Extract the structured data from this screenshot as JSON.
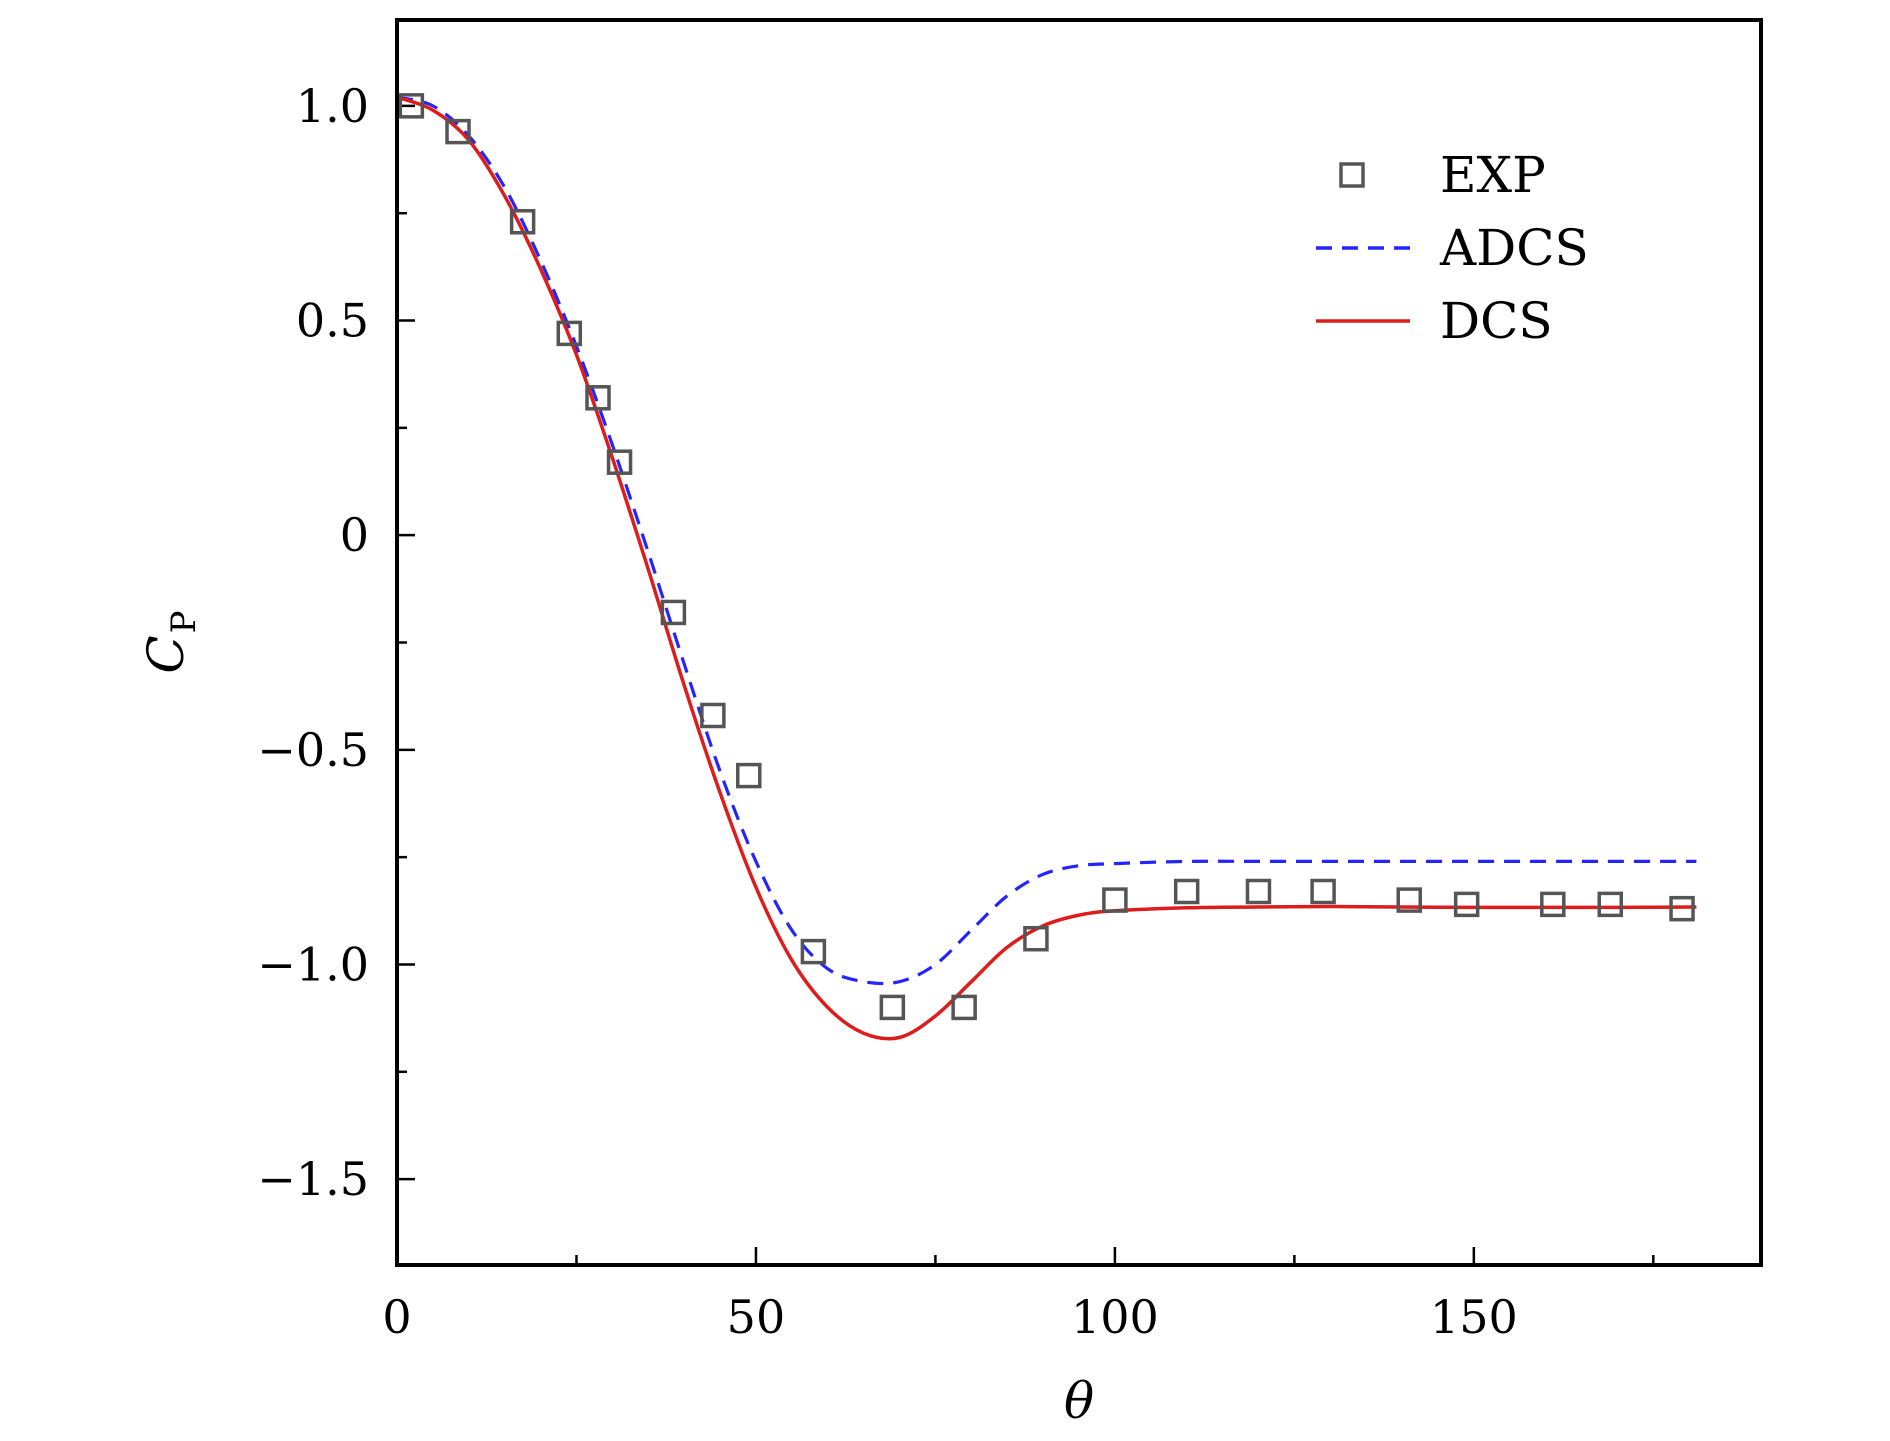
{
  "chart_data": {
    "type": "line",
    "xlabel": "θ",
    "ylabel": {
      "main": "C",
      "sub": "P"
    },
    "xlim": [
      0,
      190
    ],
    "ylim": [
      -1.7,
      1.2
    ],
    "xticks": [
      {
        "value": 0,
        "label": "0"
      },
      {
        "value": 50,
        "label": "50"
      },
      {
        "value": 100,
        "label": "100"
      },
      {
        "value": 150,
        "label": "150"
      }
    ],
    "xminor": [
      25,
      75,
      125,
      175
    ],
    "yticks": [
      {
        "value": 1.0,
        "label": "1.0"
      },
      {
        "value": 0.5,
        "label": "0.5"
      },
      {
        "value": 0,
        "label": "0"
      },
      {
        "value": -0.5,
        "label": "−0.5"
      },
      {
        "value": -1.0,
        "label": "−1.0"
      },
      {
        "value": -1.5,
        "label": "−1.5"
      }
    ],
    "yminor": [
      0.75,
      0.25,
      -0.25,
      -0.75,
      -1.25
    ],
    "legend_position": "top-right",
    "series": [
      {
        "name": "EXP",
        "kind": "marker",
        "color": "#555555",
        "x": [
          2,
          8.5,
          17.5,
          24,
          28,
          31,
          38.5,
          44,
          49,
          58,
          69,
          79,
          89,
          100,
          110,
          120,
          129,
          141,
          149,
          161,
          169,
          179
        ],
        "y": [
          1.0,
          0.94,
          0.73,
          0.47,
          0.32,
          0.17,
          -0.18,
          -0.42,
          -0.56,
          -0.97,
          -1.1,
          -1.1,
          -0.94,
          -0.85,
          -0.83,
          -0.83,
          -0.83,
          -0.85,
          -0.86,
          -0.86,
          -0.86,
          -0.87
        ]
      },
      {
        "name": "ADCS",
        "kind": "dashed",
        "color": "#2424ff",
        "x": [
          0,
          5,
          10,
          15,
          20,
          25,
          30,
          35,
          40,
          45,
          50,
          55,
          60,
          65,
          70,
          75,
          80,
          85,
          90,
          95,
          100,
          110,
          120,
          130,
          140,
          150,
          160,
          170,
          181
        ],
        "y": [
          1.02,
          1.0,
          0.93,
          0.81,
          0.64,
          0.44,
          0.21,
          -0.04,
          -0.3,
          -0.55,
          -0.76,
          -0.92,
          -1.01,
          -1.04,
          -1.04,
          -1.0,
          -0.92,
          -0.84,
          -0.79,
          -0.77,
          -0.765,
          -0.76,
          -0.76,
          -0.76,
          -0.76,
          -0.76,
          -0.76,
          -0.76,
          -0.76
        ]
      },
      {
        "name": "DCS",
        "kind": "solid",
        "color": "#dd1c1c",
        "x": [
          0,
          5,
          10,
          15,
          20,
          25,
          30,
          35,
          40,
          45,
          50,
          55,
          60,
          65,
          70,
          75,
          80,
          85,
          90,
          95,
          100,
          110,
          120,
          130,
          140,
          150,
          160,
          170,
          181
        ],
        "y": [
          1.02,
          0.99,
          0.92,
          0.79,
          0.62,
          0.42,
          0.18,
          -0.08,
          -0.35,
          -0.6,
          -0.82,
          -0.99,
          -1.1,
          -1.16,
          -1.17,
          -1.12,
          -1.04,
          -0.96,
          -0.91,
          -0.885,
          -0.875,
          -0.868,
          -0.866,
          -0.865,
          -0.866,
          -0.867,
          -0.867,
          -0.867,
          -0.866
        ]
      }
    ]
  }
}
